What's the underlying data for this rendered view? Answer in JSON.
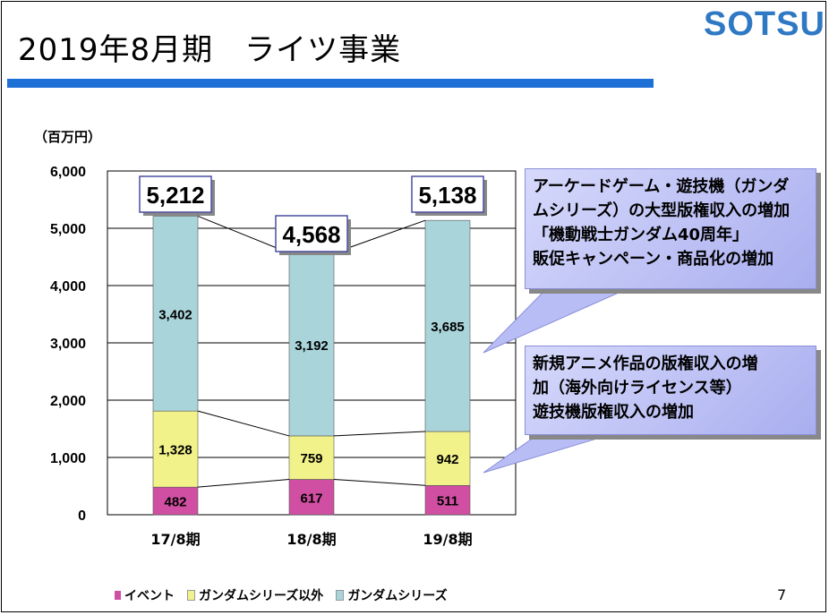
{
  "page": {
    "title": "2019年8月期　ライツ事業",
    "logo": "SOTSU",
    "unit": "（百万円）",
    "page_number": "7"
  },
  "colors": {
    "event": "#d04fa2",
    "gundam_other": "#f2f28a",
    "gundam": "#a9d5da",
    "title_rule": "#1e6fd6",
    "logo": "#2f78c4",
    "callout": "#b9bdf5"
  },
  "callouts": [
    {
      "lines": [
        "アーケードゲーム・遊技機（ガンダ",
        "ムシリーズ）の大型版権収入の増加",
        "「機動戦士ガンダム40周年」",
        "販促キャンペーン・商品化の増加"
      ]
    },
    {
      "lines": [
        "新規アニメ作品の版権収入の増",
        "加（海外向けライセンス等）",
        "遊技機版権収入の増加"
      ]
    }
  ],
  "chart_data": {
    "type": "bar",
    "stacked": true,
    "categories": [
      "17/8期",
      "18/8期",
      "19/8期"
    ],
    "series": [
      {
        "name": "イベント",
        "values": [
          482,
          617,
          511
        ],
        "color": "#d04fa2"
      },
      {
        "name": "ガンダムシリーズ以外",
        "values": [
          1328,
          759,
          942
        ],
        "color": "#f2f28a"
      },
      {
        "name": "ガンダムシリーズ",
        "values": [
          3402,
          3192,
          3685
        ],
        "color": "#a9d5da"
      }
    ],
    "totals": [
      5212,
      4568,
      5138
    ],
    "total_labels": [
      "5,212",
      "4,568",
      "5,138"
    ],
    "segment_labels": [
      [
        "482",
        "617",
        "511"
      ],
      [
        "1,328",
        "759",
        "942"
      ],
      [
        "3,402",
        "3,192",
        "3,685"
      ]
    ],
    "y_ticks": [
      "0",
      "1,000",
      "2,000",
      "3,000",
      "4,000",
      "5,000",
      "6,000"
    ],
    "ylim": [
      0,
      6000
    ],
    "grid": true,
    "legend": "bottom"
  }
}
